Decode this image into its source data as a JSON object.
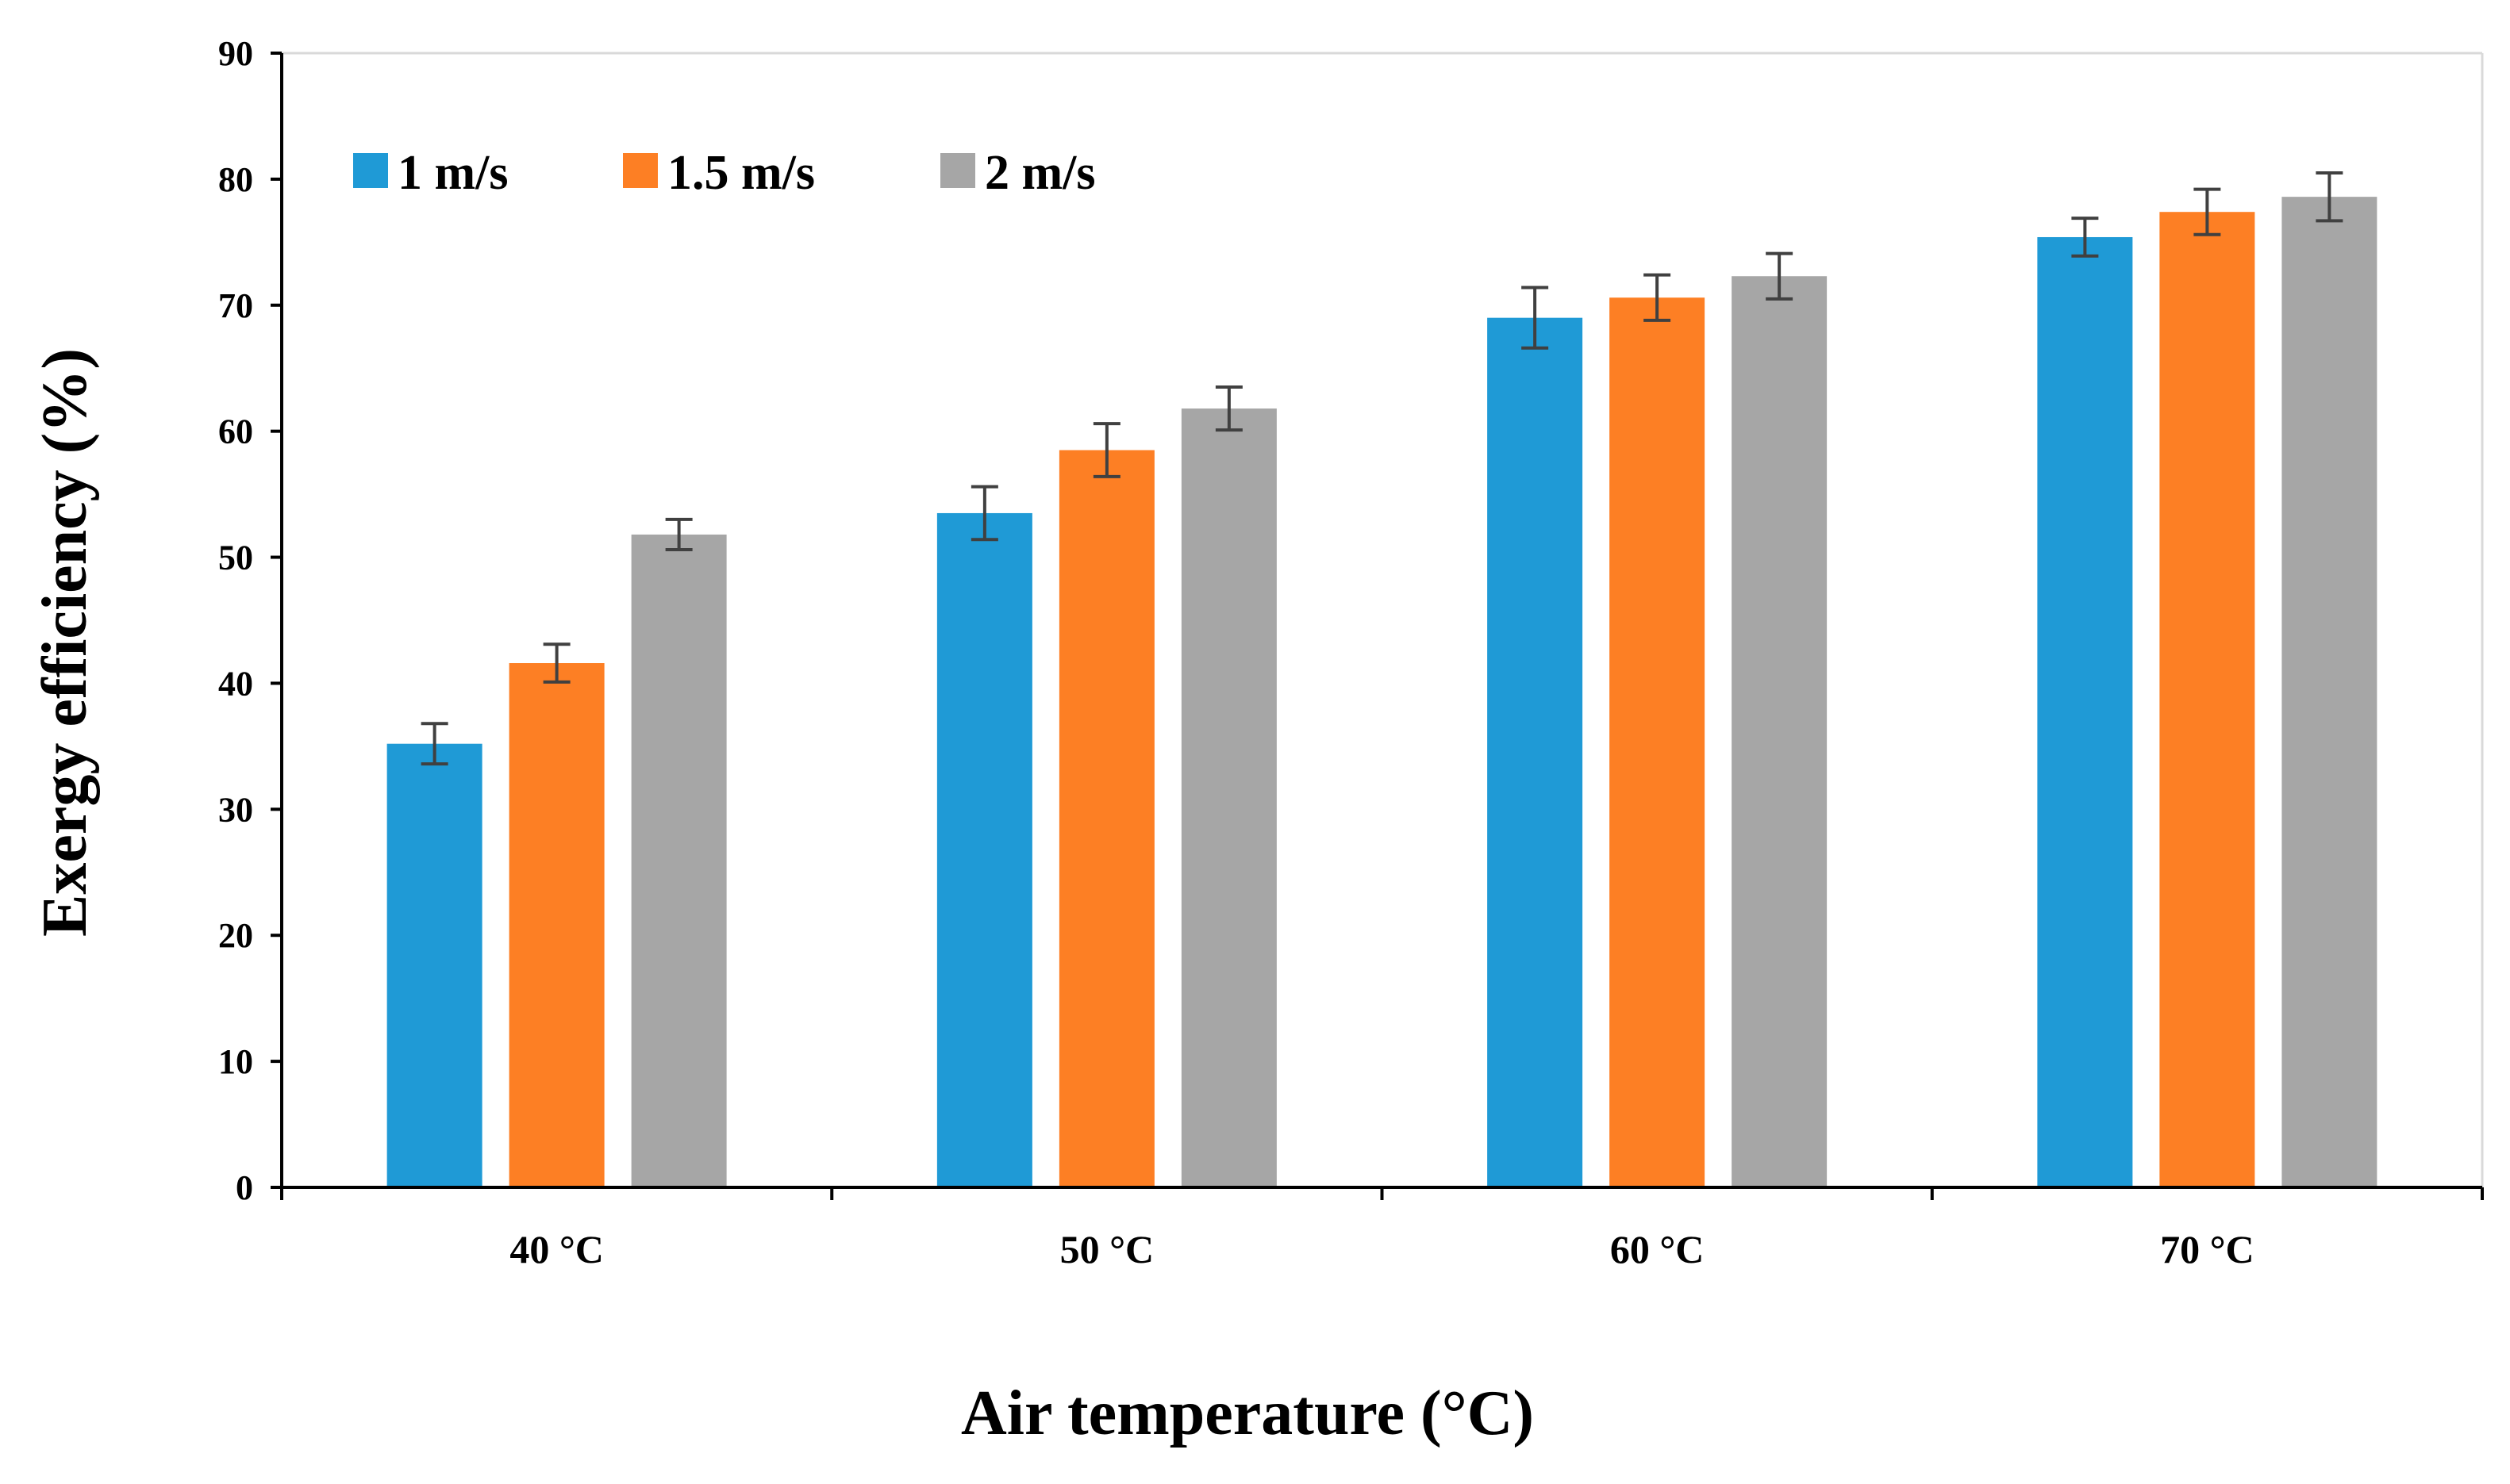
{
  "chart_data": {
    "type": "bar",
    "title": "",
    "xlabel": "Air temperature (°C)",
    "ylabel": "Exergy efficiency (%)",
    "ylim": [
      0,
      90
    ],
    "yticks": [
      "0",
      "10",
      "20",
      "30",
      "40",
      "50",
      "60",
      "70",
      "80",
      "90"
    ],
    "categories": [
      "40 °C",
      "50 °C",
      "60 °C",
      "70 °C"
    ],
    "legend_position": "top-left",
    "grid": false,
    "series": [
      {
        "name": "1 m/s",
        "color": "#1f9ad6",
        "values": [
          35.2,
          53.5,
          69.0,
          75.4
        ],
        "errors": [
          1.6,
          2.1,
          2.4,
          1.5
        ]
      },
      {
        "name": "1.5 m/s",
        "color": "#fd7f24",
        "values": [
          41.6,
          58.5,
          70.6,
          77.4
        ],
        "errors": [
          1.5,
          2.1,
          1.8,
          1.8
        ]
      },
      {
        "name": "2 m/s",
        "color": "#a6a6a6",
        "values": [
          51.8,
          61.8,
          72.3,
          78.6
        ],
        "errors": [
          1.2,
          1.7,
          1.8,
          1.9
        ]
      }
    ]
  }
}
